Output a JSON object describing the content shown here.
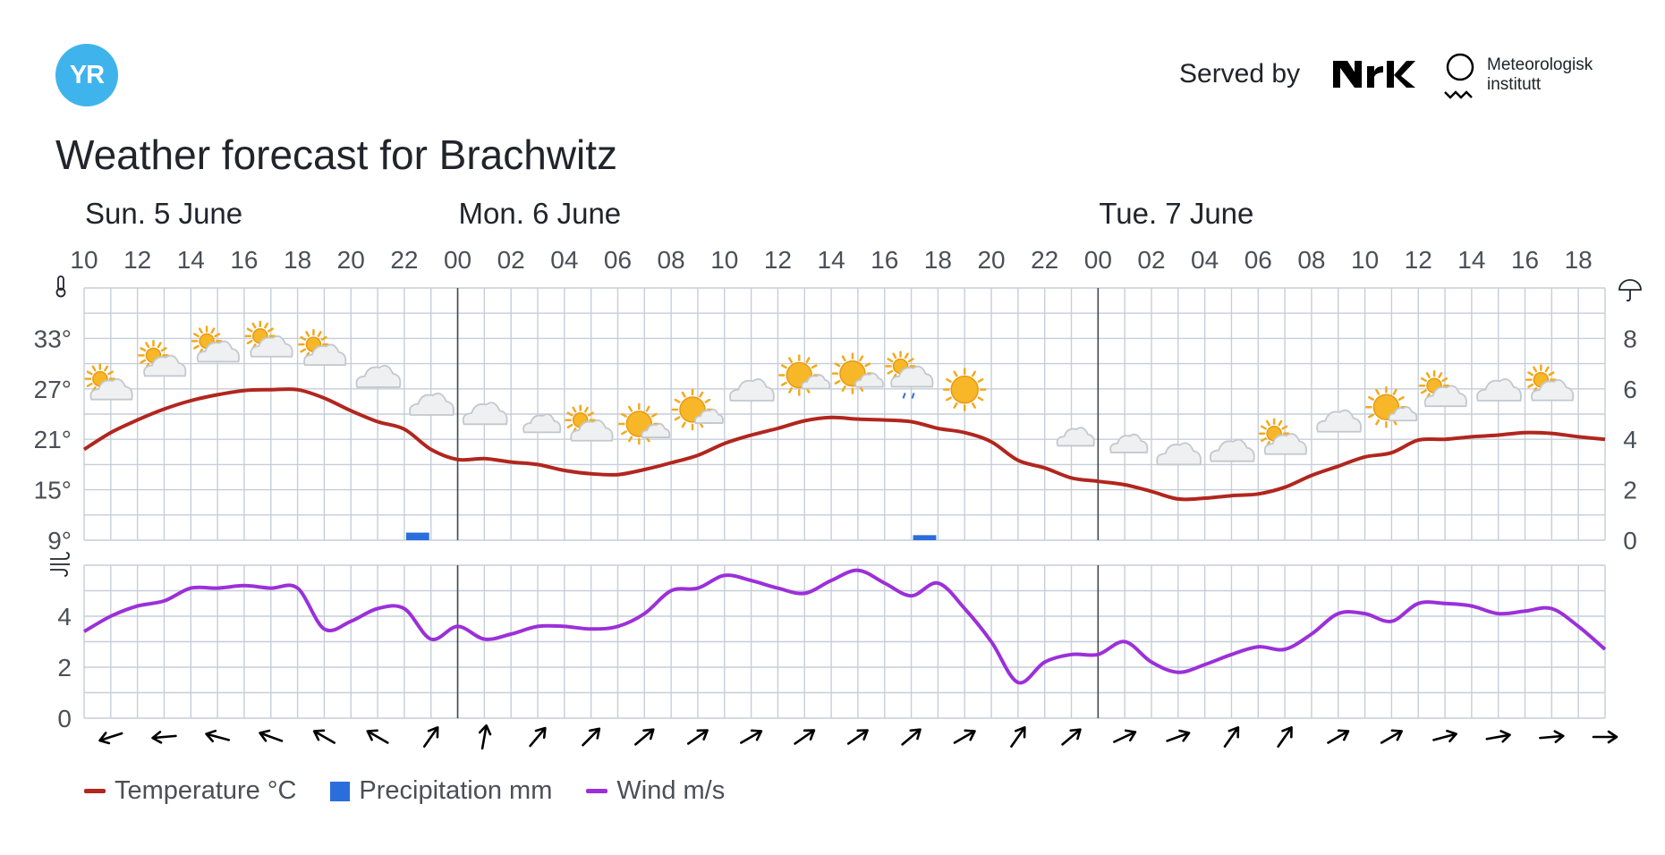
{
  "header": {
    "logo_text": "YR",
    "served_by": "Served by",
    "nrk_logo": "NRK",
    "met_line1": "Meteorologisk",
    "met_line2": "institutt",
    "title": "Weather forecast for Brachwitz"
  },
  "colors": {
    "temperature": "#b1261e",
    "precipitation": "#2a6edb",
    "wind": "#9b30d9",
    "grid": "#c6ced8",
    "yr_blue": "#3fb4ec"
  },
  "chart_data": [
    {
      "type": "line",
      "title": "",
      "days": [
        {
          "label": "Sun. 5 June",
          "start_hour": 10
        },
        {
          "label": "Mon. 6 June",
          "start_hour": 24
        },
        {
          "label": "Tue. 7 June",
          "start_hour": 48
        }
      ],
      "x_hour_range": [
        10,
        67
      ],
      "x_tick_labels": [
        "10",
        "12",
        "14",
        "16",
        "18",
        "20",
        "22",
        "00",
        "02",
        "04",
        "06",
        "08",
        "10",
        "12",
        "14",
        "16",
        "18",
        "20",
        "22",
        "00",
        "02",
        "04",
        "06",
        "08",
        "10",
        "12",
        "14",
        "16",
        "18"
      ],
      "y_left": {
        "unit": "°C",
        "ticks": [
          "9°",
          "15°",
          "21°",
          "27°",
          "33°"
        ],
        "range": [
          9,
          39
        ]
      },
      "y_right": {
        "unit": "mm",
        "ticks": [
          "0",
          "2",
          "4",
          "6",
          "8"
        ],
        "range": [
          0,
          10
        ]
      },
      "series": [
        {
          "name": "Temperature °C",
          "axis": "left",
          "x": [
            10,
            11,
            12,
            13,
            14,
            15,
            16,
            17,
            18,
            19,
            20,
            21,
            22,
            23,
            24,
            25,
            26,
            27,
            28,
            29,
            30,
            31,
            32,
            33,
            34,
            35,
            36,
            37,
            38,
            39,
            40,
            41,
            42,
            43,
            44,
            45,
            46,
            47,
            48,
            49,
            50,
            51,
            52,
            53,
            54,
            55,
            56,
            57,
            58,
            59,
            60,
            61,
            62,
            63,
            64,
            65,
            66,
            67
          ],
          "values": [
            19.8,
            21.8,
            23.3,
            24.6,
            25.6,
            26.3,
            26.8,
            26.9,
            26.9,
            25.9,
            24.4,
            23.1,
            22.2,
            19.8,
            18.6,
            18.7,
            18.3,
            18.0,
            17.3,
            16.9,
            16.8,
            17.4,
            18.2,
            19.1,
            20.5,
            21.5,
            22.3,
            23.2,
            23.6,
            23.4,
            23.3,
            23.1,
            22.3,
            21.8,
            20.7,
            18.5,
            17.6,
            16.4,
            16.0,
            15.6,
            14.8,
            13.9,
            14.0,
            14.3,
            14.5,
            15.3,
            16.7,
            17.8,
            18.9,
            19.4,
            20.9,
            21.0,
            21.3,
            21.5,
            21.8,
            21.7,
            21.3,
            21.0
          ]
        },
        {
          "name": "Precipitation mm",
          "axis": "right",
          "type": "bar",
          "bars": [
            {
              "hour": 22,
              "value": 0.3
            },
            {
              "hour": 41,
              "value": 0.2
            }
          ]
        }
      ],
      "symbols": [
        {
          "hour": 11,
          "icon": "partly-cloudy-day-icon"
        },
        {
          "hour": 13,
          "icon": "partly-cloudy-day-icon"
        },
        {
          "hour": 15,
          "icon": "partly-cloudy-day-icon"
        },
        {
          "hour": 17,
          "icon": "partly-cloudy-day-icon"
        },
        {
          "hour": 19,
          "icon": "partly-cloudy-day-icon"
        },
        {
          "hour": 21,
          "icon": "cloudy-icon"
        },
        {
          "hour": 23,
          "icon": "cloudy-icon"
        },
        {
          "hour": 25,
          "icon": "cloudy-icon"
        },
        {
          "hour": 27,
          "icon": "partly-cloudy-night-icon"
        },
        {
          "hour": 29,
          "icon": "partly-cloudy-day-icon"
        },
        {
          "hour": 31,
          "icon": "fair-day-icon"
        },
        {
          "hour": 33,
          "icon": "fair-day-icon"
        },
        {
          "hour": 35,
          "icon": "cloudy-icon"
        },
        {
          "hour": 37,
          "icon": "fair-day-icon"
        },
        {
          "hour": 39,
          "icon": "fair-day-icon"
        },
        {
          "hour": 41,
          "icon": "light-rain-showers-icon"
        },
        {
          "hour": 43,
          "icon": "clear-sky-day-icon"
        },
        {
          "hour": 45,
          "icon": "clear-sky-night-icon"
        },
        {
          "hour": 47,
          "icon": "partly-cloudy-night-icon"
        },
        {
          "hour": 49,
          "icon": "partly-cloudy-night-icon"
        },
        {
          "hour": 51,
          "icon": "cloudy-icon"
        },
        {
          "hour": 53,
          "icon": "cloudy-icon"
        },
        {
          "hour": 55,
          "icon": "partly-cloudy-day-icon"
        },
        {
          "hour": 57,
          "icon": "cloudy-icon"
        },
        {
          "hour": 59,
          "icon": "fair-day-icon"
        },
        {
          "hour": 61,
          "icon": "partly-cloudy-day-icon"
        },
        {
          "hour": 63,
          "icon": "cloudy-icon"
        },
        {
          "hour": 65,
          "icon": "partly-cloudy-day-icon"
        }
      ]
    },
    {
      "type": "line",
      "title": "",
      "y_left": {
        "unit": "m/s",
        "ticks": [
          "0",
          "2",
          "4"
        ],
        "range": [
          0,
          6
        ]
      },
      "series": [
        {
          "name": "Wind m/s",
          "x": [
            10,
            11,
            12,
            13,
            14,
            15,
            16,
            17,
            18,
            19,
            20,
            21,
            22,
            23,
            24,
            25,
            26,
            27,
            28,
            29,
            30,
            31,
            32,
            33,
            34,
            35,
            36,
            37,
            38,
            39,
            40,
            41,
            42,
            43,
            44,
            45,
            46,
            47,
            48,
            49,
            50,
            51,
            52,
            53,
            54,
            55,
            56,
            57,
            58,
            59,
            60,
            61,
            62,
            63,
            64,
            65,
            66,
            67
          ],
          "values": [
            3.4,
            4.0,
            4.4,
            4.6,
            5.1,
            5.1,
            5.2,
            5.1,
            5.1,
            3.5,
            3.8,
            4.3,
            4.3,
            3.1,
            3.6,
            3.1,
            3.3,
            3.6,
            3.6,
            3.5,
            3.6,
            4.1,
            5.0,
            5.1,
            5.6,
            5.4,
            5.1,
            4.9,
            5.4,
            5.8,
            5.3,
            4.8,
            5.3,
            4.3,
            3.0,
            1.4,
            2.2,
            2.5,
            2.5,
            3.0,
            2.2,
            1.8,
            2.1,
            2.5,
            2.8,
            2.7,
            3.3,
            4.1,
            4.1,
            3.8,
            4.5,
            4.5,
            4.4,
            4.1,
            4.2,
            4.3,
            3.6,
            2.7
          ]
        }
      ],
      "wind_arrows": [
        {
          "hour": 11,
          "dir_deg": 252
        },
        {
          "hour": 13,
          "dir_deg": 265
        },
        {
          "hour": 15,
          "dir_deg": 285
        },
        {
          "hour": 17,
          "dir_deg": 290
        },
        {
          "hour": 19,
          "dir_deg": 300
        },
        {
          "hour": 21,
          "dir_deg": 300
        },
        {
          "hour": 23,
          "dir_deg": 35
        },
        {
          "hour": 25,
          "dir_deg": 10
        },
        {
          "hour": 27,
          "dir_deg": 40
        },
        {
          "hour": 29,
          "dir_deg": 45
        },
        {
          "hour": 31,
          "dir_deg": 50
        },
        {
          "hour": 33,
          "dir_deg": 55
        },
        {
          "hour": 35,
          "dir_deg": 60
        },
        {
          "hour": 37,
          "dir_deg": 55
        },
        {
          "hour": 39,
          "dir_deg": 55
        },
        {
          "hour": 41,
          "dir_deg": 50
        },
        {
          "hour": 43,
          "dir_deg": 60
        },
        {
          "hour": 45,
          "dir_deg": 35
        },
        {
          "hour": 47,
          "dir_deg": 50
        },
        {
          "hour": 49,
          "dir_deg": 65
        },
        {
          "hour": 51,
          "dir_deg": 70
        },
        {
          "hour": 53,
          "dir_deg": 35
        },
        {
          "hour": 55,
          "dir_deg": 35
        },
        {
          "hour": 57,
          "dir_deg": 60
        },
        {
          "hour": 59,
          "dir_deg": 60
        },
        {
          "hour": 61,
          "dir_deg": 75
        },
        {
          "hour": 63,
          "dir_deg": 80
        },
        {
          "hour": 65,
          "dir_deg": 85
        },
        {
          "hour": 67,
          "dir_deg": 90
        }
      ]
    }
  ],
  "legend": [
    {
      "label": "Temperature °C",
      "shape": "line",
      "color": "#b1261e"
    },
    {
      "label": "Precipitation mm",
      "shape": "box",
      "color": "#2a6edb"
    },
    {
      "label": "Wind m/s",
      "shape": "line",
      "color": "#9b30d9"
    }
  ]
}
